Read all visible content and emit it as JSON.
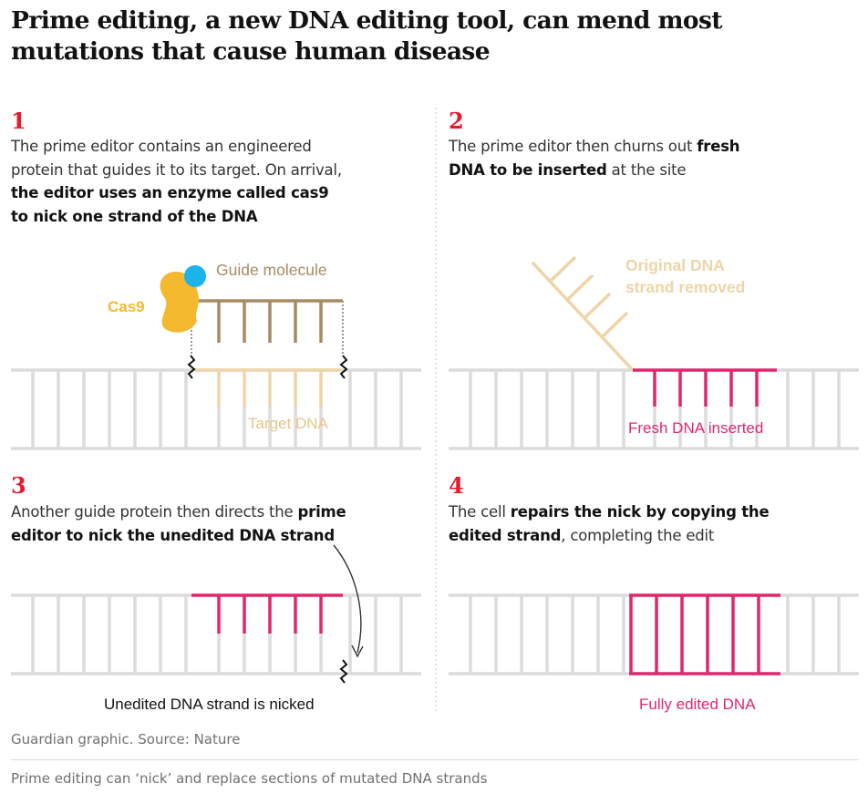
{
  "title": "Prime editing, a new DNA editing tool, can mend most mutations that cause human disease",
  "panels": [
    {
      "number": "1",
      "text_a": "The prime editor contains an engineered protein that guides it to its target. On arrival, ",
      "text_b": "the editor uses an enzyme called cas9 to nick one strand of the DNA",
      "label_guide": "Guide molecule",
      "label_cas9": "Cas9",
      "label_target": "Target DNA"
    },
    {
      "number": "2",
      "text_a": "The prime editor then churns out ",
      "text_b": "fresh DNA to be inserted",
      "text_c": " at the site",
      "label_removed_1": "Original DNA",
      "label_removed_2": "strand removed",
      "label_inserted": "Fresh DNA inserted"
    },
    {
      "number": "3",
      "text_a": "Another guide protein then directs the ",
      "text_b": "prime editor to nick the unedited DNA strand",
      "label_nicked": "Unedited DNA strand is nicked"
    },
    {
      "number": "4",
      "text_a": "The cell ",
      "text_b": "repairs the nick by copying the edited strand",
      "text_c": ", completing the edit",
      "label_edited": "Fully edited DNA"
    }
  ],
  "colors": {
    "accent_red": "#e8192c",
    "dna_grey": "#dcdcdc",
    "guide_brown": "#a78b62",
    "cas9_yellow": "#f4b92f",
    "guide_blue": "#1cb4eb",
    "target_tan": "#efd4a8",
    "fresh_pink": "#e0276e"
  },
  "source": "Guardian graphic. Source: Nature",
  "caption": "Prime editing can ‘nick’ and replace sections of mutated DNA strands"
}
